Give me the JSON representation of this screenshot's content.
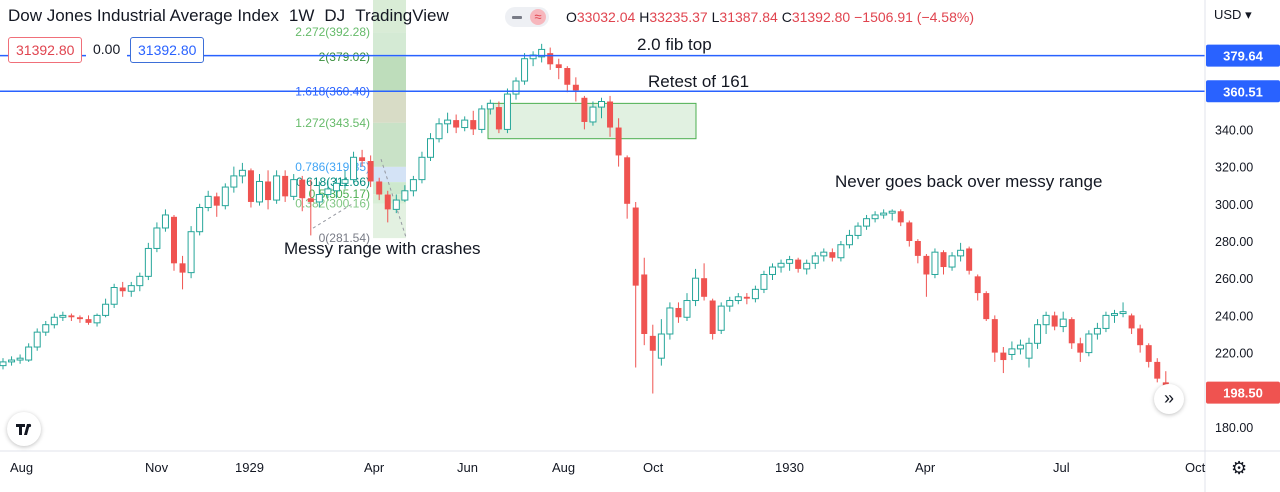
{
  "header": {
    "symbol_name": "Dow Jones Industrial Average Index",
    "interval": "1W",
    "exchange": "DJ",
    "source": "TradingView",
    "ohlc": {
      "o_label": "O",
      "o": "33032.04",
      "h_label": "H",
      "h": "33235.37",
      "l_label": "L",
      "l": "31387.84",
      "c_label": "C",
      "c": "31392.80",
      "change": "−1506.91 (−4.58%)"
    },
    "currency": "USD"
  },
  "price_boxes": {
    "bid": "31392.80",
    "spread": "0.00",
    "ask": "31392.80"
  },
  "colors": {
    "up": "#26a69a",
    "down": "#ef5350",
    "hline": "#2962ff",
    "zone": "#4caf50"
  },
  "chart_data": {
    "type": "candlestick",
    "y_axis": {
      "min": 170,
      "max": 420,
      "ticks": [
        "180.00",
        "200.00",
        "220.00",
        "240.00",
        "260.00",
        "280.00",
        "300.00",
        "320.00",
        "340.00"
      ]
    },
    "x_axis_labels": [
      "Aug",
      "Nov",
      "1929",
      "Apr",
      "Jun",
      "Aug",
      "Oct",
      "1930",
      "Apr",
      "Jul",
      "Oct"
    ],
    "candles": [
      {
        "o": 213,
        "h": 217,
        "l": 211,
        "c": 215
      },
      {
        "o": 215,
        "h": 218,
        "l": 213,
        "c": 216
      },
      {
        "o": 216,
        "h": 219,
        "l": 214,
        "c": 217
      },
      {
        "o": 216,
        "h": 225,
        "l": 215,
        "c": 223
      },
      {
        "o": 223,
        "h": 233,
        "l": 221,
        "c": 231
      },
      {
        "o": 231,
        "h": 237,
        "l": 229,
        "c": 235
      },
      {
        "o": 235,
        "h": 241,
        "l": 233,
        "c": 239
      },
      {
        "o": 239,
        "h": 242,
        "l": 237,
        "c": 240
      },
      {
        "o": 240,
        "h": 241,
        "l": 237,
        "c": 239
      },
      {
        "o": 239,
        "h": 240,
        "l": 236,
        "c": 238
      },
      {
        "o": 238,
        "h": 240,
        "l": 235,
        "c": 236
      },
      {
        "o": 236,
        "h": 241,
        "l": 234,
        "c": 240
      },
      {
        "o": 240,
        "h": 249,
        "l": 239,
        "c": 246
      },
      {
        "o": 246,
        "h": 257,
        "l": 244,
        "c": 255
      },
      {
        "o": 255,
        "h": 258,
        "l": 250,
        "c": 253
      },
      {
        "o": 253,
        "h": 258,
        "l": 250,
        "c": 256
      },
      {
        "o": 256,
        "h": 263,
        "l": 253,
        "c": 261
      },
      {
        "o": 261,
        "h": 279,
        "l": 259,
        "c": 276
      },
      {
        "o": 276,
        "h": 290,
        "l": 274,
        "c": 287
      },
      {
        "o": 287,
        "h": 297,
        "l": 285,
        "c": 294
      },
      {
        "o": 293,
        "h": 294,
        "l": 264,
        "c": 268
      },
      {
        "o": 268,
        "h": 272,
        "l": 254,
        "c": 263
      },
      {
        "o": 263,
        "h": 288,
        "l": 260,
        "c": 285
      },
      {
        "o": 285,
        "h": 300,
        "l": 283,
        "c": 298
      },
      {
        "o": 298,
        "h": 307,
        "l": 296,
        "c": 304
      },
      {
        "o": 304,
        "h": 306,
        "l": 293,
        "c": 299
      },
      {
        "o": 299,
        "h": 311,
        "l": 297,
        "c": 309
      },
      {
        "o": 309,
        "h": 320,
        "l": 306,
        "c": 315
      },
      {
        "o": 315,
        "h": 322,
        "l": 311,
        "c": 318
      },
      {
        "o": 318,
        "h": 319,
        "l": 298,
        "c": 301
      },
      {
        "o": 301,
        "h": 316,
        "l": 299,
        "c": 312
      },
      {
        "o": 312,
        "h": 318,
        "l": 297,
        "c": 302
      },
      {
        "o": 302,
        "h": 318,
        "l": 300,
        "c": 315
      },
      {
        "o": 315,
        "h": 318,
        "l": 301,
        "c": 304
      },
      {
        "o": 304,
        "h": 316,
        "l": 302,
        "c": 313
      },
      {
        "o": 313,
        "h": 315,
        "l": 296,
        "c": 303
      },
      {
        "o": 303,
        "h": 313,
        "l": 283,
        "c": 301
      },
      {
        "o": 301,
        "h": 312,
        "l": 298,
        "c": 305
      },
      {
        "o": 305,
        "h": 313,
        "l": 303,
        "c": 308
      },
      {
        "o": 307,
        "h": 314,
        "l": 303,
        "c": 311
      },
      {
        "o": 311,
        "h": 318,
        "l": 308,
        "c": 313
      },
      {
        "o": 313,
        "h": 328,
        "l": 311,
        "c": 325
      },
      {
        "o": 325,
        "h": 329,
        "l": 320,
        "c": 323
      },
      {
        "o": 323,
        "h": 326,
        "l": 309,
        "c": 312
      },
      {
        "o": 312,
        "h": 314,
        "l": 302,
        "c": 305
      },
      {
        "o": 305,
        "h": 307,
        "l": 290,
        "c": 297
      },
      {
        "o": 297,
        "h": 305,
        "l": 295,
        "c": 302
      },
      {
        "o": 302,
        "h": 310,
        "l": 301,
        "c": 307
      },
      {
        "o": 307,
        "h": 315,
        "l": 304,
        "c": 313
      },
      {
        "o": 313,
        "h": 328,
        "l": 311,
        "c": 325
      },
      {
        "o": 325,
        "h": 338,
        "l": 323,
        "c": 335
      },
      {
        "o": 335,
        "h": 346,
        "l": 333,
        "c": 343
      },
      {
        "o": 343,
        "h": 349,
        "l": 338,
        "c": 345
      },
      {
        "o": 345,
        "h": 348,
        "l": 338,
        "c": 341
      },
      {
        "o": 341,
        "h": 347,
        "l": 339,
        "c": 345
      },
      {
        "o": 345,
        "h": 350,
        "l": 337,
        "c": 340
      },
      {
        "o": 340,
        "h": 353,
        "l": 338,
        "c": 351
      },
      {
        "o": 351,
        "h": 356,
        "l": 348,
        "c": 354
      },
      {
        "o": 352,
        "h": 355,
        "l": 338,
        "c": 340
      },
      {
        "o": 340,
        "h": 362,
        "l": 338,
        "c": 359
      },
      {
        "o": 359,
        "h": 368,
        "l": 356,
        "c": 366
      },
      {
        "o": 366,
        "h": 381,
        "l": 364,
        "c": 378
      },
      {
        "o": 378,
        "h": 382,
        "l": 374,
        "c": 380
      },
      {
        "o": 379,
        "h": 386,
        "l": 376,
        "c": 383
      },
      {
        "o": 381,
        "h": 384,
        "l": 372,
        "c": 375
      },
      {
        "o": 375,
        "h": 378,
        "l": 367,
        "c": 373
      },
      {
        "o": 373,
        "h": 374,
        "l": 360,
        "c": 364
      },
      {
        "o": 364,
        "h": 368,
        "l": 355,
        "c": 361
      },
      {
        "o": 357,
        "h": 358,
        "l": 340,
        "c": 344
      },
      {
        "o": 344,
        "h": 355,
        "l": 342,
        "c": 352
      },
      {
        "o": 352,
        "h": 357,
        "l": 346,
        "c": 355
      },
      {
        "o": 355,
        "h": 358,
        "l": 336,
        "c": 341
      },
      {
        "o": 341,
        "h": 346,
        "l": 320,
        "c": 326
      },
      {
        "o": 325,
        "h": 326,
        "l": 292,
        "c": 300
      },
      {
        "o": 298,
        "h": 301,
        "l": 212,
        "c": 256
      },
      {
        "o": 262,
        "h": 271,
        "l": 224,
        "c": 230
      },
      {
        "o": 229,
        "h": 235,
        "l": 198,
        "c": 221
      },
      {
        "o": 217,
        "h": 238,
        "l": 213,
        "c": 230
      },
      {
        "o": 230,
        "h": 247,
        "l": 227,
        "c": 244
      },
      {
        "o": 244,
        "h": 247,
        "l": 236,
        "c": 239
      },
      {
        "o": 239,
        "h": 252,
        "l": 237,
        "c": 248
      },
      {
        "o": 248,
        "h": 265,
        "l": 245,
        "c": 260
      },
      {
        "o": 260,
        "h": 268,
        "l": 248,
        "c": 250
      },
      {
        "o": 248,
        "h": 249,
        "l": 227,
        "c": 230
      },
      {
        "o": 232,
        "h": 247,
        "l": 230,
        "c": 245
      },
      {
        "o": 245,
        "h": 250,
        "l": 242,
        "c": 248
      },
      {
        "o": 248,
        "h": 252,
        "l": 246,
        "c": 250
      },
      {
        "o": 250,
        "h": 252,
        "l": 246,
        "c": 249
      },
      {
        "o": 249,
        "h": 256,
        "l": 247,
        "c": 254
      },
      {
        "o": 254,
        "h": 264,
        "l": 252,
        "c": 262
      },
      {
        "o": 262,
        "h": 268,
        "l": 259,
        "c": 266
      },
      {
        "o": 266,
        "h": 270,
        "l": 263,
        "c": 268
      },
      {
        "o": 268,
        "h": 272,
        "l": 264,
        "c": 270
      },
      {
        "o": 270,
        "h": 271,
        "l": 263,
        "c": 265
      },
      {
        "o": 265,
        "h": 270,
        "l": 262,
        "c": 268
      },
      {
        "o": 268,
        "h": 274,
        "l": 265,
        "c": 272
      },
      {
        "o": 272,
        "h": 276,
        "l": 269,
        "c": 274
      },
      {
        "o": 274,
        "h": 276,
        "l": 269,
        "c": 271
      },
      {
        "o": 271,
        "h": 280,
        "l": 269,
        "c": 278
      },
      {
        "o": 278,
        "h": 286,
        "l": 276,
        "c": 283
      },
      {
        "o": 283,
        "h": 290,
        "l": 281,
        "c": 288
      },
      {
        "o": 288,
        "h": 294,
        "l": 286,
        "c": 292
      },
      {
        "o": 292,
        "h": 296,
        "l": 290,
        "c": 294
      },
      {
        "o": 294,
        "h": 297,
        "l": 292,
        "c": 295
      },
      {
        "o": 295,
        "h": 297,
        "l": 291,
        "c": 296
      },
      {
        "o": 296,
        "h": 297,
        "l": 288,
        "c": 290
      },
      {
        "o": 290,
        "h": 291,
        "l": 277,
        "c": 280
      },
      {
        "o": 280,
        "h": 281,
        "l": 268,
        "c": 272
      },
      {
        "o": 272,
        "h": 273,
        "l": 250,
        "c": 262
      },
      {
        "o": 262,
        "h": 276,
        "l": 260,
        "c": 274
      },
      {
        "o": 274,
        "h": 275,
        "l": 262,
        "c": 266
      },
      {
        "o": 266,
        "h": 274,
        "l": 264,
        "c": 272
      },
      {
        "o": 272,
        "h": 279,
        "l": 269,
        "c": 275
      },
      {
        "o": 276,
        "h": 277,
        "l": 262,
        "c": 264
      },
      {
        "o": 261,
        "h": 262,
        "l": 248,
        "c": 252
      },
      {
        "o": 252,
        "h": 253,
        "l": 237,
        "c": 238
      },
      {
        "o": 238,
        "h": 240,
        "l": 215,
        "c": 220
      },
      {
        "o": 220,
        "h": 223,
        "l": 209,
        "c": 216
      },
      {
        "o": 219,
        "h": 226,
        "l": 216,
        "c": 222
      },
      {
        "o": 222,
        "h": 227,
        "l": 219,
        "c": 224
      },
      {
        "o": 217,
        "h": 228,
        "l": 212,
        "c": 225
      },
      {
        "o": 225,
        "h": 238,
        "l": 222,
        "c": 235
      },
      {
        "o": 235,
        "h": 242,
        "l": 230,
        "c": 240
      },
      {
        "o": 240,
        "h": 242,
        "l": 232,
        "c": 234
      },
      {
        "o": 234,
        "h": 242,
        "l": 231,
        "c": 238
      },
      {
        "o": 238,
        "h": 239,
        "l": 222,
        "c": 225
      },
      {
        "o": 225,
        "h": 228,
        "l": 215,
        "c": 220
      },
      {
        "o": 220,
        "h": 232,
        "l": 218,
        "c": 230
      },
      {
        "o": 230,
        "h": 236,
        "l": 227,
        "c": 233
      },
      {
        "o": 233,
        "h": 242,
        "l": 231,
        "c": 240
      },
      {
        "o": 240,
        "h": 243,
        "l": 236,
        "c": 241
      },
      {
        "o": 241,
        "h": 247,
        "l": 239,
        "c": 242
      },
      {
        "o": 240,
        "h": 241,
        "l": 230,
        "c": 233
      },
      {
        "o": 233,
        "h": 235,
        "l": 220,
        "c": 224
      },
      {
        "o": 224,
        "h": 225,
        "l": 212,
        "c": 215
      },
      {
        "o": 215,
        "h": 217,
        "l": 204,
        "c": 206
      },
      {
        "o": 204,
        "h": 210,
        "l": 188,
        "c": 199
      }
    ],
    "horizontal_lines": [
      {
        "price": 379.64,
        "label": "379.64"
      },
      {
        "price": 360.51,
        "label": "360.51"
      }
    ],
    "last_price": {
      "price": 198.5,
      "label": "198.50"
    },
    "fib_levels": [
      {
        "price": 392.28,
        "label": "2.272(392.28)",
        "color": "#66bb6a"
      },
      {
        "price": 379.02,
        "label": "2(379.02)",
        "color": "#388e3c"
      },
      {
        "price": 360.4,
        "label": "1.618(360.40)",
        "color": "#2962ff"
      },
      {
        "price": 343.54,
        "label": "1.272(343.54)",
        "color": "#66bb6a"
      },
      {
        "price": 319.85,
        "label": "0.786(319.85)",
        "color": "#42a5f5"
      },
      {
        "price": 311.66,
        "label": "0.618(311.66)",
        "color": "#00897b"
      },
      {
        "price": 305.17,
        "label": "0.5(305.17)",
        "color": "#4caf50"
      },
      {
        "price": 300.16,
        "label": "0.382(300.16)",
        "color": "#81c784"
      },
      {
        "price": 281.54,
        "label": "0(281.54)",
        "color": "#787b86"
      }
    ],
    "zone": {
      "top": 354,
      "bottom": 335
    },
    "annotations": [
      "2.0 fib top",
      "Retest of 161",
      "Never goes back over messy range",
      "Messy range with crashes"
    ]
  }
}
